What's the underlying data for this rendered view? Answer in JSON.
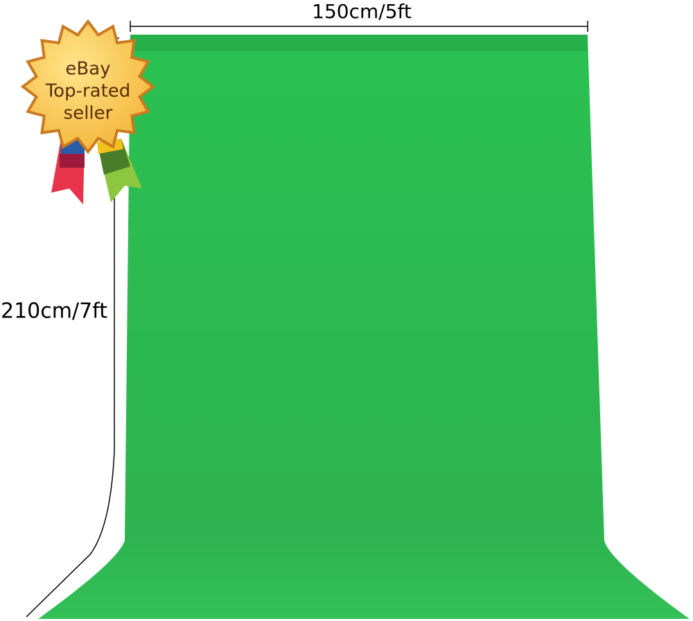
{
  "dimensions": {
    "width": "150cm/5ft",
    "height": "210cm/7ft"
  },
  "badge": {
    "lines": [
      "eBay",
      "Top-rated",
      "seller"
    ]
  }
}
